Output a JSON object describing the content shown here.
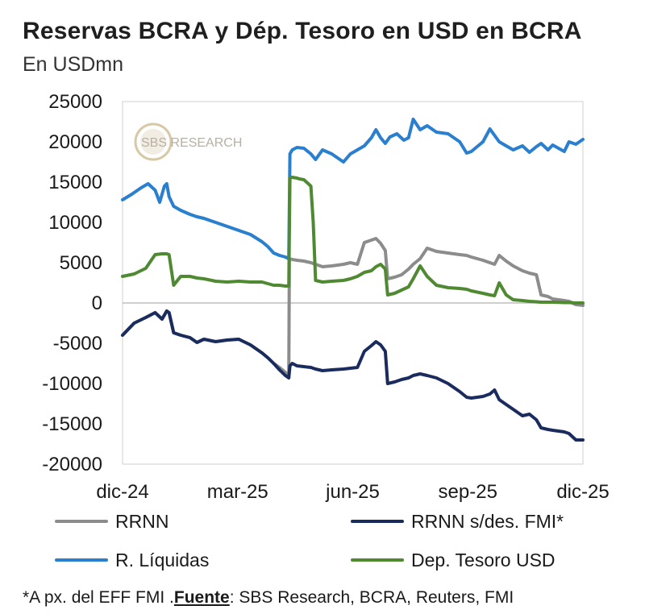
{
  "chart_data": {
    "type": "line",
    "title": "Reservas BCRA y Dép. Tesoro en USD en BCRA",
    "subtitle": "En USDmn",
    "watermark": "SBS RESEARCH",
    "x_tick_labels": [
      "dic-24",
      "mar-25",
      "jun-25",
      "sep-25",
      "dic-25"
    ],
    "y_ticks": [
      25000,
      20000,
      15000,
      10000,
      5000,
      0,
      -5000,
      -10000,
      -15000,
      -20000
    ],
    "ylim": [
      -20000,
      25000
    ],
    "x_unit": "days since 2024-12-01",
    "xlim": [
      0,
      396
    ],
    "grid": false,
    "legend_position": "bottom",
    "colors": {
      "RRNN": "#8c8c8c",
      "RRNN s/des. FMI*": "#1a2b5e",
      "R. Líquidas": "#2a7fce",
      "Dep. Tesoro USD": "#4f8a32",
      "zero_line": "#bdbdbd",
      "frame": "#cfcfcf"
    },
    "legend": [
      "RRNN",
      "RRNN s/des. FMI*",
      "R. Líquidas",
      "Dep. Tesoro USD"
    ],
    "series": [
      {
        "name": "RRNN",
        "x": [
          0,
          10,
          20,
          28,
          34,
          38,
          40,
          44,
          50,
          58,
          64,
          70,
          80,
          90,
          100,
          110,
          120,
          125,
          130,
          135,
          140,
          143,
          143.5,
          146,
          150,
          156,
          162,
          166,
          172,
          180,
          190,
          196,
          202,
          208,
          214,
          218,
          222,
          226,
          228,
          234,
          240,
          246,
          250,
          256,
          262,
          270,
          280,
          290,
          296,
          300,
          310,
          316,
          320,
          324,
          330,
          336,
          344,
          350,
          356,
          360,
          366,
          370,
          380,
          384,
          390,
          396
        ],
        "y": [
          -4000,
          -2500,
          -1800,
          -1200,
          -2000,
          -1000,
          -1200,
          -3700,
          -4000,
          -4300,
          -4900,
          -4500,
          -4800,
          -4600,
          -4500,
          -5200,
          -6200,
          -6800,
          -7500,
          -8000,
          -8600,
          -9000,
          5500,
          5400,
          5300,
          5200,
          5000,
          4800,
          4500,
          4600,
          4800,
          5000,
          4800,
          7500,
          7800,
          8000,
          7400,
          6500,
          3000,
          3200,
          3500,
          4200,
          4800,
          5500,
          6800,
          6400,
          6200,
          6000,
          5900,
          5700,
          5300,
          5000,
          4800,
          5900,
          5200,
          4600,
          4000,
          3700,
          3500,
          1000,
          800,
          500,
          300,
          200,
          -200,
          -300
        ]
      },
      {
        "name": "RRNN s/des. FMI*",
        "x": [
          0,
          10,
          20,
          28,
          34,
          38,
          40,
          44,
          50,
          58,
          64,
          70,
          80,
          90,
          100,
          110,
          120,
          125,
          130,
          135,
          140,
          143,
          144,
          146,
          150,
          156,
          162,
          166,
          172,
          180,
          190,
          196,
          202,
          208,
          214,
          218,
          222,
          226,
          228,
          234,
          240,
          246,
          250,
          256,
          262,
          270,
          280,
          290,
          296,
          300,
          310,
          316,
          320,
          324,
          330,
          336,
          344,
          350,
          356,
          360,
          366,
          370,
          380,
          384,
          390,
          396
        ],
        "y": [
          -4000,
          -2500,
          -1800,
          -1200,
          -2000,
          -1000,
          -1200,
          -3700,
          -4000,
          -4300,
          -4900,
          -4500,
          -4800,
          -4600,
          -4500,
          -5200,
          -6200,
          -6800,
          -7500,
          -8300,
          -9000,
          -9300,
          -7800,
          -7500,
          -7800,
          -7900,
          -8000,
          -8200,
          -8400,
          -8300,
          -8200,
          -8100,
          -8000,
          -6000,
          -5300,
          -4800,
          -5200,
          -6000,
          -10000,
          -9800,
          -9500,
          -9300,
          -9000,
          -8800,
          -9000,
          -9300,
          -10000,
          -11000,
          -11700,
          -11800,
          -11600,
          -11300,
          -10800,
          -12000,
          -12600,
          -13200,
          -14000,
          -13800,
          -14500,
          -15500,
          -15700,
          -15800,
          -16000,
          -16200,
          -17000,
          -17000
        ]
      },
      {
        "name": "R. Líquidas",
        "x": [
          0,
          8,
          16,
          22,
          28,
          32,
          36,
          38,
          40,
          44,
          50,
          58,
          64,
          70,
          80,
          90,
          100,
          110,
          120,
          125,
          130,
          135,
          140,
          143,
          144,
          146,
          150,
          156,
          162,
          166,
          172,
          180,
          190,
          196,
          202,
          208,
          214,
          218,
          222,
          226,
          230,
          236,
          242,
          246,
          250,
          256,
          262,
          270,
          280,
          290,
          296,
          300,
          310,
          316,
          320,
          324,
          330,
          336,
          344,
          350,
          356,
          360,
          366,
          370,
          380,
          384,
          390,
          396
        ],
        "y": [
          12800,
          13500,
          14300,
          14800,
          14000,
          12500,
          14500,
          14800,
          13200,
          12000,
          11500,
          11000,
          10700,
          10500,
          10000,
          9500,
          9000,
          8500,
          7600,
          7000,
          6200,
          5900,
          5700,
          5500,
          18500,
          19000,
          19300,
          19200,
          18500,
          17800,
          19000,
          18500,
          17500,
          18500,
          19000,
          19500,
          20500,
          21500,
          20500,
          19800,
          20600,
          21000,
          20200,
          20500,
          22800,
          21500,
          22000,
          21200,
          21000,
          20000,
          18600,
          18800,
          20000,
          21600,
          20800,
          20000,
          19500,
          19000,
          19500,
          18700,
          19400,
          19800,
          19000,
          19600,
          18800,
          20000,
          19700,
          20300
        ]
      },
      {
        "name": "Dep. Tesoro USD",
        "x": [
          0,
          10,
          20,
          28,
          34,
          38,
          40,
          44,
          50,
          58,
          64,
          70,
          80,
          90,
          100,
          110,
          120,
          125,
          130,
          135,
          140,
          143,
          144,
          146,
          150,
          152,
          156,
          162,
          164,
          166,
          172,
          180,
          190,
          196,
          202,
          208,
          214,
          218,
          222,
          226,
          228,
          234,
          240,
          246,
          250,
          256,
          262,
          270,
          280,
          290,
          296,
          300,
          310,
          316,
          320,
          324,
          330,
          336,
          344,
          350,
          356,
          360,
          366,
          370,
          380,
          384,
          390,
          396
        ],
        "y": [
          3300,
          3600,
          4300,
          6000,
          6100,
          6100,
          6000,
          2200,
          3300,
          3300,
          3100,
          3000,
          2700,
          2600,
          2700,
          2600,
          2600,
          2400,
          2200,
          2200,
          2100,
          2100,
          15500,
          15600,
          15500,
          15400,
          15300,
          14500,
          10000,
          2800,
          2600,
          2700,
          2800,
          3000,
          3300,
          3800,
          4000,
          4500,
          4800,
          4200,
          1000,
          1200,
          1600,
          2000,
          3000,
          4600,
          3300,
          2200,
          1900,
          1800,
          1700,
          1500,
          1200,
          1000,
          900,
          2500,
          1000,
          400,
          300,
          200,
          150,
          100,
          100,
          100,
          50,
          50,
          0,
          0
        ]
      }
    ]
  },
  "footnote": {
    "prefix": "*A px. del EFF FMI .",
    "source_label": "Fuente",
    "source_text": ": SBS Research, BCRA, Reuters, FMI"
  }
}
